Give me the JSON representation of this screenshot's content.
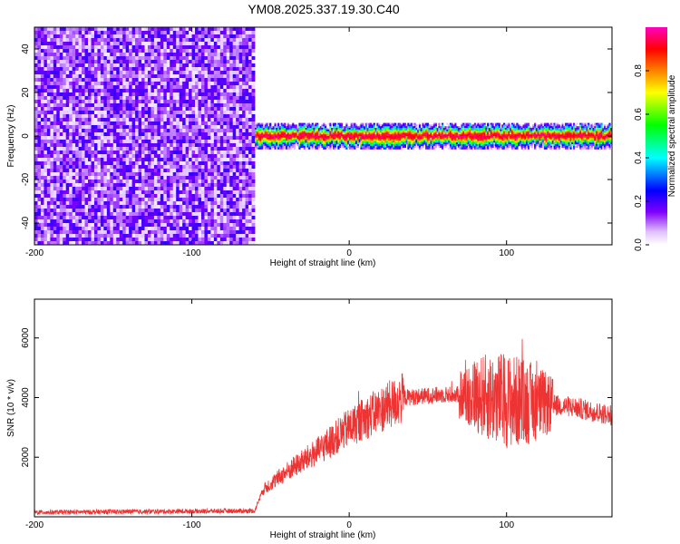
{
  "title": "YM08.2025.337.19.30.C40",
  "chart_data": [
    {
      "type": "heatmap",
      "xlabel": "Height of straight line (km)",
      "ylabel": "Frequency (Hz)",
      "xlim": [
        -200,
        167
      ],
      "ylim": [
        -50,
        50
      ],
      "xticks": [
        -200,
        -100,
        0,
        100
      ],
      "yticks": [
        -40,
        -20,
        0,
        20,
        40
      ],
      "colorbar": {
        "label": "Normalized spectral amplitude",
        "range": [
          0,
          1
        ],
        "ticks": [
          "0.0",
          "0.2",
          "0.4",
          "0.6",
          "0.8"
        ],
        "colormap": [
          "#ffffff",
          "#8000ff",
          "#0000ff",
          "#00ffff",
          "#00ff00",
          "#ffff00",
          "#ff8000",
          "#ff0000",
          "#ff00ff"
        ]
      },
      "regions": [
        {
          "x_start": -200,
          "x_end": -60,
          "freq_min": -50,
          "freq_max": 50,
          "description_level": 0.1
        },
        {
          "x_start": -60,
          "x_end": 167,
          "freq_center": 0,
          "freq_halfwidth": 6,
          "peak_level": 0.95
        }
      ]
    },
    {
      "type": "line",
      "xlabel": "Height of straight line (km)",
      "ylabel": "SNR (10 * v/v)",
      "xlim": [
        -200,
        167
      ],
      "ylim": [
        0,
        7300
      ],
      "xticks": [
        -200,
        -100,
        0,
        100
      ],
      "yticks": [
        2000,
        4000,
        6000
      ],
      "color": "#ee3333",
      "envelope_x": [
        -200,
        -60,
        -55,
        -40,
        -20,
        -10,
        0,
        20,
        35,
        60,
        80,
        100,
        120,
        140,
        167
      ],
      "envelope_y": [
        150,
        200,
        900,
        1500,
        2200,
        2600,
        3000,
        3600,
        4000,
        4100,
        4100,
        3900,
        3800,
        3700,
        3400
      ]
    }
  ]
}
